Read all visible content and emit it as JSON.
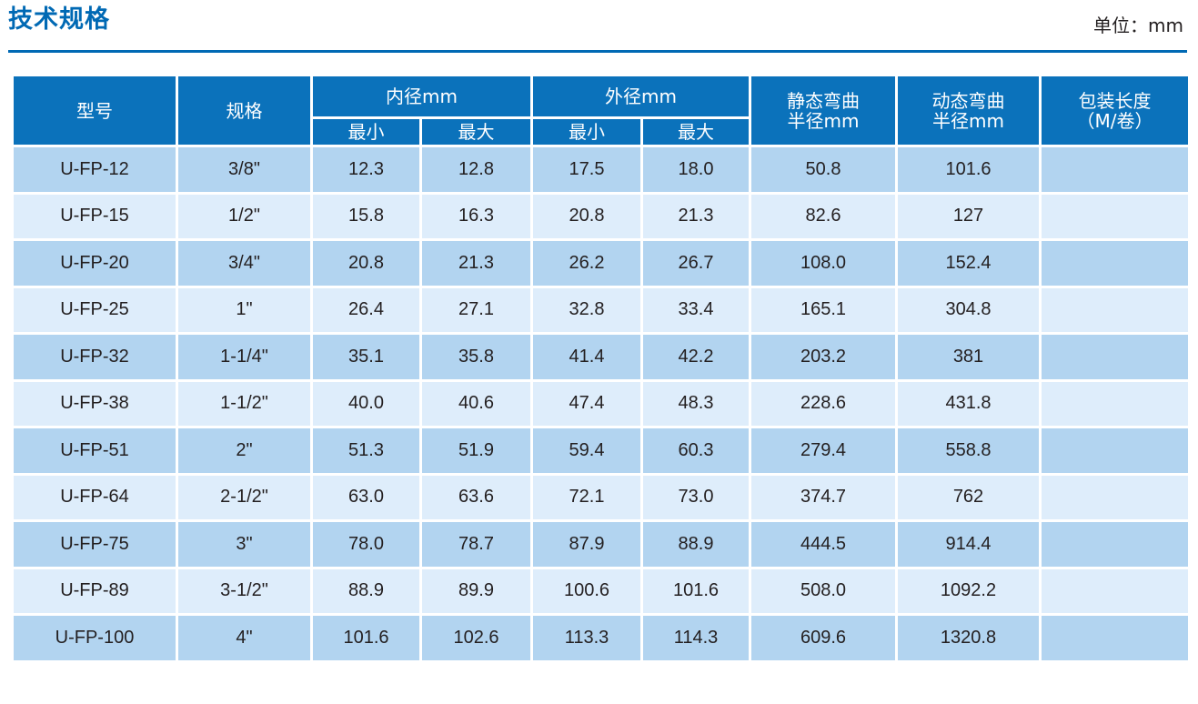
{
  "title": "技术规格",
  "unit_label": "单位：mm",
  "headers": {
    "model": "型号",
    "spec": "规格",
    "inner_diameter": "内径mm",
    "outer_diameter": "外径mm",
    "min": "最小",
    "max": "最大",
    "static_bend_line1": "静态弯曲",
    "static_bend_line2": "半径mm",
    "dynamic_bend_line1": "动态弯曲",
    "dynamic_bend_line2": "半径mm",
    "package_line1": "包装长度",
    "package_line2": "（M/卷）"
  },
  "rows": [
    [
      "U-FP-12",
      "3/8\"",
      "12.3",
      "12.8",
      "17.5",
      "18.0",
      "50.8",
      "101.6",
      ""
    ],
    [
      "U-FP-15",
      "1/2\"",
      "15.8",
      "16.3",
      "20.8",
      "21.3",
      "82.6",
      "127",
      ""
    ],
    [
      "U-FP-20",
      "3/4\"",
      "20.8",
      "21.3",
      "26.2",
      "26.7",
      "108.0",
      "152.4",
      ""
    ],
    [
      "U-FP-25",
      "1\"",
      "26.4",
      "27.1",
      "32.8",
      "33.4",
      "165.1",
      "304.8",
      ""
    ],
    [
      "U-FP-32",
      "1-1/4\"",
      "35.1",
      "35.8",
      "41.4",
      "42.2",
      "203.2",
      "381",
      ""
    ],
    [
      "U-FP-38",
      "1-1/2\"",
      "40.0",
      "40.6",
      "47.4",
      "48.3",
      "228.6",
      "431.8",
      ""
    ],
    [
      "U-FP-51",
      "2\"",
      "51.3",
      "51.9",
      "59.4",
      "60.3",
      "279.4",
      "558.8",
      ""
    ],
    [
      "U-FP-64",
      "2-1/2\"",
      "63.0",
      "63.6",
      "72.1",
      "73.0",
      "374.7",
      "762",
      ""
    ],
    [
      "U-FP-75",
      "3\"",
      "78.0",
      "78.7",
      "87.9",
      "88.9",
      "444.5",
      "914.4",
      ""
    ],
    [
      "U-FP-89",
      "3-1/2\"",
      "88.9",
      "89.9",
      "100.6",
      "101.6",
      "508.0",
      "1092.2",
      ""
    ],
    [
      "U-FP-100",
      "4\"",
      "101.6",
      "102.6",
      "113.3",
      "114.3",
      "609.6",
      "1320.8",
      ""
    ]
  ],
  "colors": {
    "accent": "#0069b4",
    "header_bg": "#0b72bb",
    "row_dark": "#b2d4f0",
    "row_light": "#deedfb"
  }
}
